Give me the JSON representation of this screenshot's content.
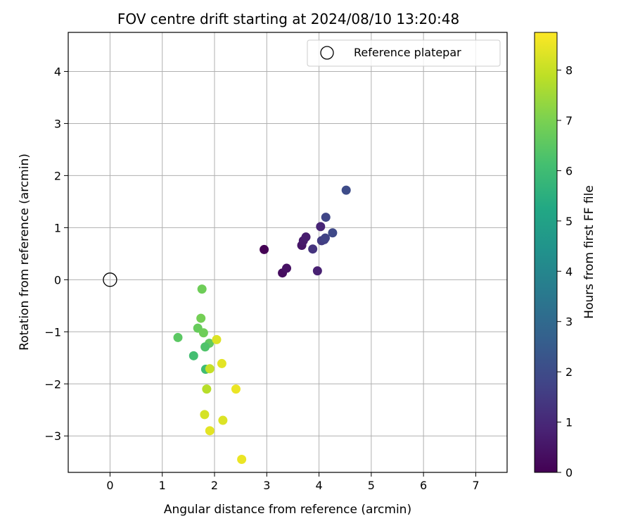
{
  "chart_data": {
    "type": "scatter",
    "title": "FOV centre drift starting at 2024/08/10 13:20:48",
    "xlabel": "Angular distance from reference (arcmin)",
    "ylabel": "Rotation from reference (arcmin)",
    "xlim": [
      -0.8,
      7.6
    ],
    "ylim": [
      -3.7,
      4.75
    ],
    "xticks": [
      0,
      1,
      2,
      3,
      4,
      5,
      6,
      7
    ],
    "yticks": [
      -3,
      -2,
      -1,
      0,
      1,
      2,
      3,
      4
    ],
    "grid": true,
    "legend": {
      "placement": "top-right",
      "entries": [
        {
          "label": "Reference platepar",
          "marker": "open-circle"
        }
      ]
    },
    "reference_point": {
      "x": 0,
      "y": 0
    },
    "colorbar": {
      "label": "Hours from first FF file",
      "colormap": "viridis",
      "range": [
        0,
        8.75
      ],
      "ticks": [
        0,
        1,
        2,
        3,
        4,
        5,
        6,
        7,
        8
      ]
    },
    "points": [
      {
        "x": 2.95,
        "y": 0.58,
        "c": 0.0
      },
      {
        "x": 3.3,
        "y": 0.13,
        "c": 0.3
      },
      {
        "x": 3.38,
        "y": 0.22,
        "c": 0.4
      },
      {
        "x": 3.67,
        "y": 0.66,
        "c": 0.5
      },
      {
        "x": 3.7,
        "y": 0.75,
        "c": 0.6
      },
      {
        "x": 3.75,
        "y": 0.82,
        "c": 0.7
      },
      {
        "x": 3.97,
        "y": 0.17,
        "c": 0.8
      },
      {
        "x": 4.03,
        "y": 1.02,
        "c": 0.9
      },
      {
        "x": 3.88,
        "y": 0.59,
        "c": 1.3
      },
      {
        "x": 4.05,
        "y": 0.75,
        "c": 1.5
      },
      {
        "x": 4.1,
        "y": 0.77,
        "c": 1.6
      },
      {
        "x": 4.12,
        "y": 0.8,
        "c": 1.7
      },
      {
        "x": 4.13,
        "y": 1.2,
        "c": 1.8
      },
      {
        "x": 4.26,
        "y": 0.9,
        "c": 1.9
      },
      {
        "x": 4.52,
        "y": 1.72,
        "c": 2.0
      },
      {
        "x": 1.76,
        "y": -0.18,
        "c": 6.8
      },
      {
        "x": 1.74,
        "y": -0.74,
        "c": 6.9
      },
      {
        "x": 1.3,
        "y": -1.11,
        "c": 6.5
      },
      {
        "x": 1.68,
        "y": -0.93,
        "c": 6.7
      },
      {
        "x": 1.79,
        "y": -1.02,
        "c": 6.8
      },
      {
        "x": 1.9,
        "y": -1.22,
        "c": 6.6
      },
      {
        "x": 1.82,
        "y": -1.29,
        "c": 6.3
      },
      {
        "x": 1.6,
        "y": -1.46,
        "c": 6.1
      },
      {
        "x": 1.83,
        "y": -1.72,
        "c": 6.0
      },
      {
        "x": 2.04,
        "y": -1.15,
        "c": 8.3
      },
      {
        "x": 2.14,
        "y": -1.61,
        "c": 8.4
      },
      {
        "x": 1.91,
        "y": -1.71,
        "c": 8.0
      },
      {
        "x": 1.85,
        "y": -2.1,
        "c": 7.8
      },
      {
        "x": 2.41,
        "y": -2.1,
        "c": 8.5
      },
      {
        "x": 1.81,
        "y": -2.59,
        "c": 8.2
      },
      {
        "x": 2.16,
        "y": -2.7,
        "c": 8.3
      },
      {
        "x": 1.91,
        "y": -2.9,
        "c": 8.4
      },
      {
        "x": 2.52,
        "y": -3.45,
        "c": 8.5
      }
    ]
  }
}
